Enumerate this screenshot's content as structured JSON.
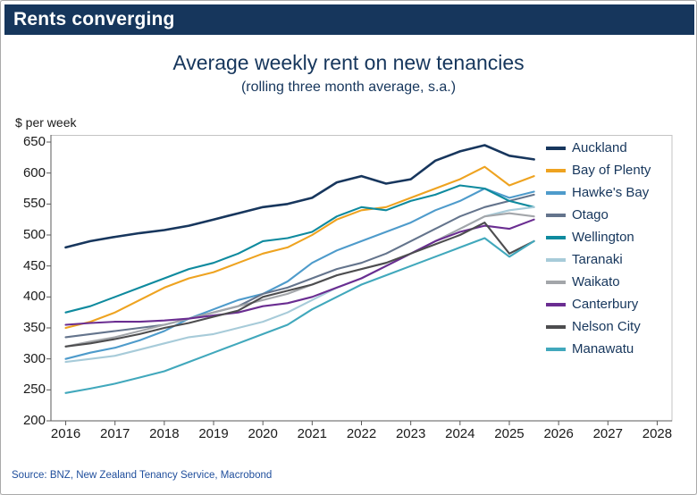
{
  "header": {
    "title": "Rents converging"
  },
  "chart": {
    "title": "Average weekly rent on new tenancies",
    "subtitle": "(rolling three month average, s.a.)",
    "y_unit_label": "$ per week"
  },
  "source": "Source: BNZ, New Zealand Tenancy Service, Macrobond",
  "colors": {
    "header_bg": "#16365c",
    "title_text": "#16365c",
    "axis_line": "#595959",
    "plot_border": "#c3c3c3",
    "source_text": "#1f4e9c"
  },
  "chart_data": {
    "type": "line",
    "title": "Average weekly rent on new tenancies",
    "subtitle": "(rolling three month average, s.a.)",
    "xlabel": "",
    "ylabel": "$ per week",
    "xlim": [
      2016,
      2028
    ],
    "ylim": [
      200,
      650
    ],
    "x_ticks": [
      2016,
      2017,
      2018,
      2019,
      2020,
      2021,
      2022,
      2023,
      2024,
      2025,
      2026,
      2027,
      2028
    ],
    "y_ticks": [
      200,
      250,
      300,
      350,
      400,
      450,
      500,
      550,
      600,
      650
    ],
    "grid": false,
    "legend_position": "right",
    "x": [
      2016.0,
      2016.5,
      2017.0,
      2017.5,
      2018.0,
      2018.5,
      2019.0,
      2019.5,
      2020.0,
      2020.5,
      2021.0,
      2021.5,
      2022.0,
      2022.5,
      2023.0,
      2023.5,
      2024.0,
      2024.5,
      2025.0,
      2025.5
    ],
    "series": [
      {
        "name": "Auckland",
        "color": "#17365d",
        "values": [
          480,
          490,
          497,
          503,
          508,
          515,
          525,
          535,
          545,
          550,
          560,
          585,
          595,
          583,
          590,
          620,
          635,
          645,
          628,
          622
        ]
      },
      {
        "name": "Bay of Plenty",
        "color": "#eea320",
        "values": [
          350,
          360,
          375,
          395,
          415,
          430,
          440,
          455,
          470,
          480,
          500,
          525,
          540,
          545,
          560,
          575,
          590,
          610,
          580,
          595
        ]
      },
      {
        "name": "Hawke's Bay",
        "color": "#4e9bcb",
        "values": [
          300,
          310,
          318,
          330,
          345,
          365,
          380,
          395,
          405,
          425,
          455,
          475,
          490,
          505,
          520,
          540,
          555,
          575,
          560,
          570
        ]
      },
      {
        "name": "Otago",
        "color": "#64748c",
        "values": [
          335,
          340,
          345,
          350,
          355,
          365,
          375,
          385,
          405,
          415,
          430,
          445,
          455,
          470,
          490,
          510,
          530,
          545,
          555,
          565
        ]
      },
      {
        "name": "Wellington",
        "color": "#0e8a9e",
        "values": [
          375,
          385,
          400,
          415,
          430,
          445,
          455,
          470,
          490,
          495,
          505,
          530,
          545,
          540,
          555,
          565,
          580,
          575,
          555,
          545
        ]
      },
      {
        "name": "Taranaki",
        "color": "#a7cbd9",
        "values": [
          295,
          300,
          305,
          315,
          325,
          335,
          340,
          350,
          360,
          375,
          395,
          415,
          430,
          450,
          470,
          490,
          510,
          530,
          540,
          545
        ]
      },
      {
        "name": "Waikato",
        "color": "#a3a6aa",
        "values": [
          320,
          328,
          335,
          345,
          355,
          365,
          375,
          385,
          395,
          405,
          420,
          435,
          445,
          455,
          470,
          490,
          510,
          530,
          535,
          530
        ]
      },
      {
        "name": "Canterbury",
        "color": "#6a2d91",
        "values": [
          355,
          358,
          360,
          360,
          362,
          365,
          370,
          375,
          385,
          390,
          400,
          415,
          430,
          450,
          470,
          490,
          505,
          515,
          510,
          525
        ]
      },
      {
        "name": "Nelson City",
        "color": "#4d4d4f",
        "values": [
          320,
          325,
          332,
          340,
          350,
          358,
          368,
          378,
          400,
          410,
          420,
          435,
          445,
          455,
          470,
          485,
          500,
          520,
          470,
          490
        ]
      },
      {
        "name": "Manawatu",
        "color": "#41a8bc",
        "values": [
          245,
          252,
          260,
          270,
          280,
          295,
          310,
          325,
          340,
          355,
          380,
          400,
          420,
          435,
          450,
          465,
          480,
          495,
          465,
          490
        ]
      }
    ]
  }
}
